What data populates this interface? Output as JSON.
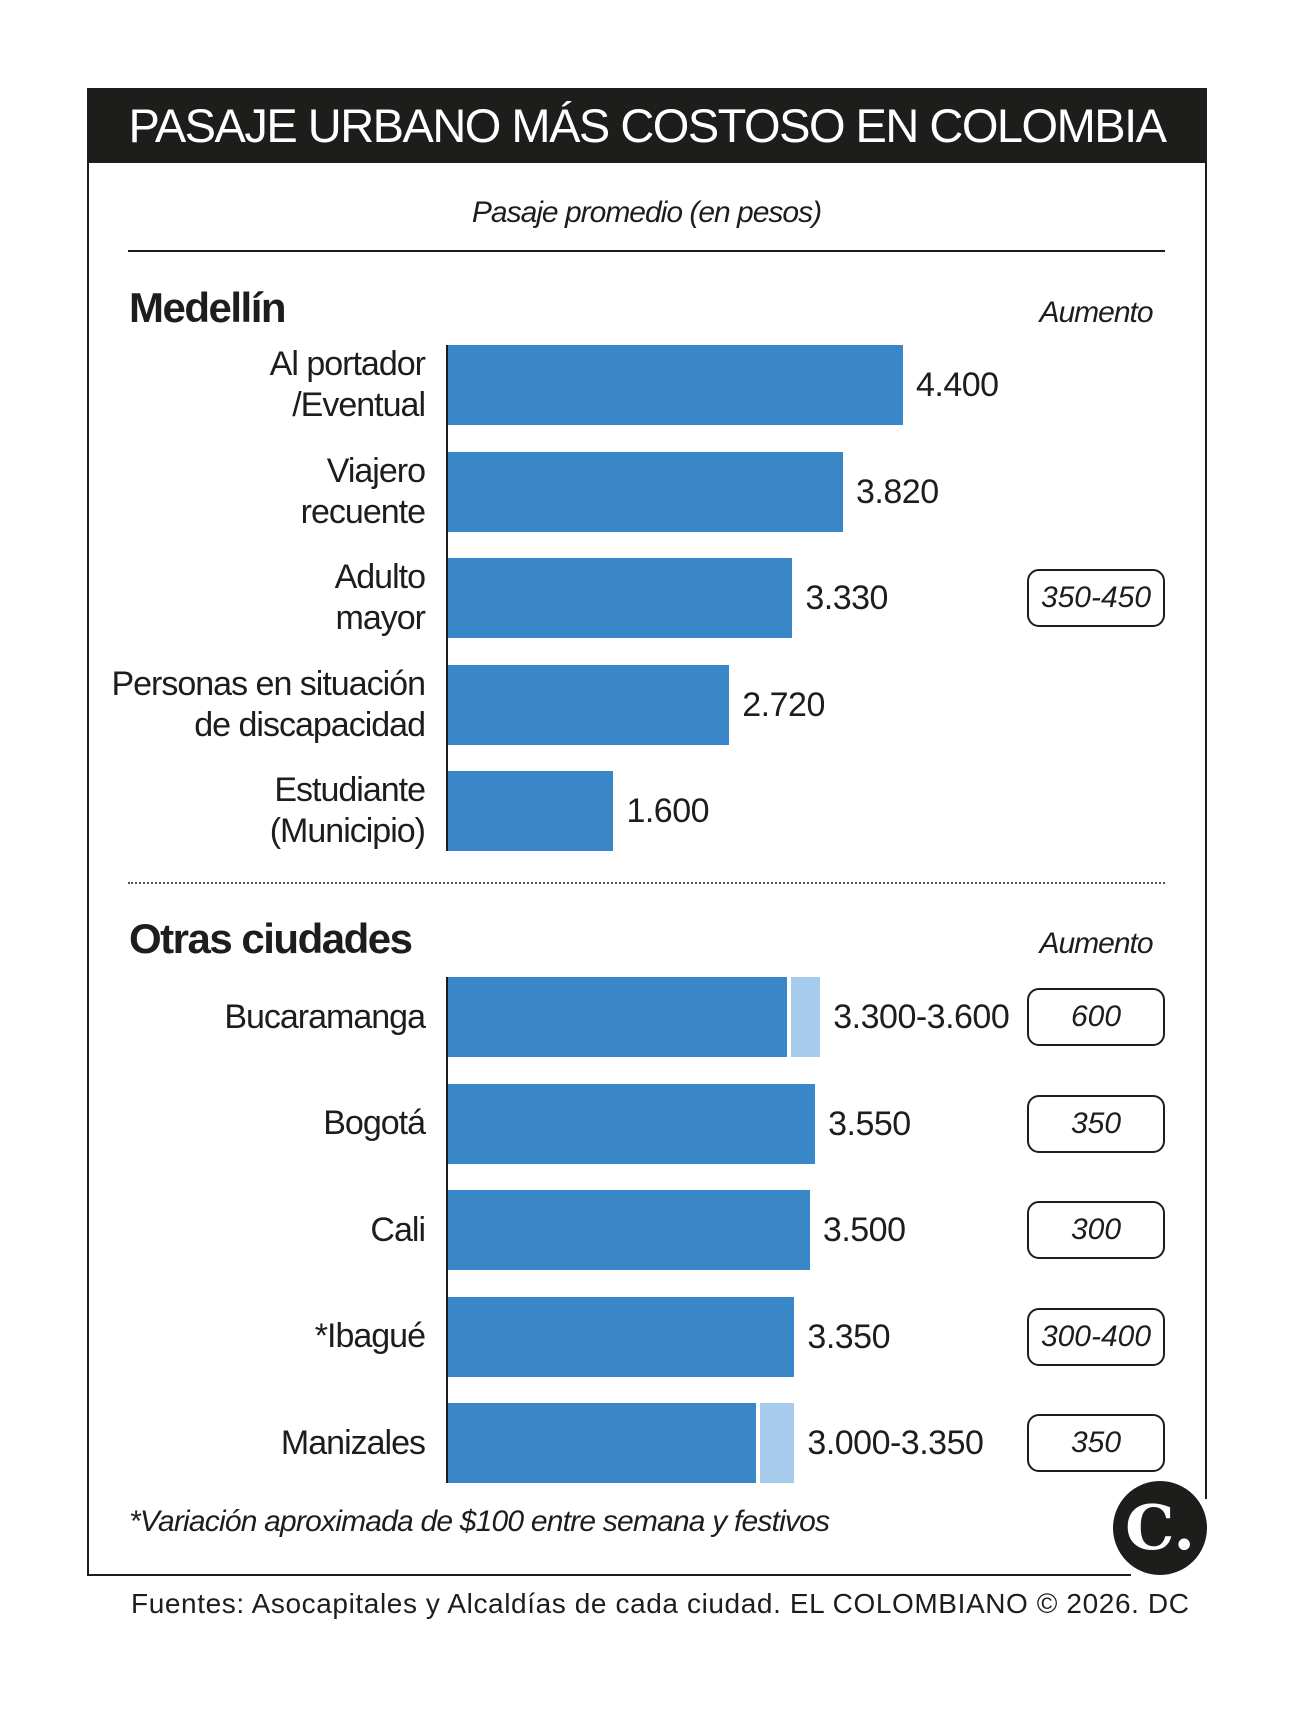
{
  "header": {
    "title": "PASAJE URBANO MÁS COSTOSO EN COLOMBIA",
    "subtitle": "Pasaje promedio (en pesos)"
  },
  "colors": {
    "bar": "#3a87c8",
    "bar_range": "#a7cbec",
    "title_bg": "#1d1d1b"
  },
  "chart_data": [
    {
      "type": "bar",
      "title": "Medellín",
      "increase_header": "Aumento",
      "categories": [
        [
          "Al portador",
          "/Eventual"
        ],
        [
          "Viajero",
          "recuente"
        ],
        [
          "Adulto",
          "mayor"
        ],
        [
          "Personas en situación",
          "de discapacidad"
        ],
        [
          "Estudiante",
          "(Municipio)"
        ]
      ],
      "values": [
        4400,
        3820,
        3330,
        2720,
        1600
      ],
      "value_labels": [
        "4.400",
        "3.820",
        "3.330",
        "2.720",
        "1.600"
      ],
      "increase": [
        "",
        "",
        "350-450",
        "",
        ""
      ]
    },
    {
      "type": "bar",
      "title": "Otras ciudades",
      "increase_header": "Aumento",
      "categories": [
        [
          "Bucaramanga"
        ],
        [
          "Bogotá"
        ],
        [
          "Cali"
        ],
        [
          "*Ibagué"
        ],
        [
          "Manizales"
        ]
      ],
      "values": [
        [
          3300,
          3600
        ],
        3550,
        3500,
        3350,
        [
          3000,
          3350
        ]
      ],
      "value_labels": [
        "3.300-3.600",
        "3.550",
        "3.500",
        "3.350",
        "3.000-3.350"
      ],
      "increase": [
        "600",
        "350",
        "300",
        "300-400",
        "350"
      ]
    }
  ],
  "footnote": "*Variación aproximada de $100 entre semana y festivos",
  "source": "Fuentes: Asocapitales y Alcaldías de cada ciudad. EL COLOMBIANO © 2026. DC",
  "logo_text": "C."
}
